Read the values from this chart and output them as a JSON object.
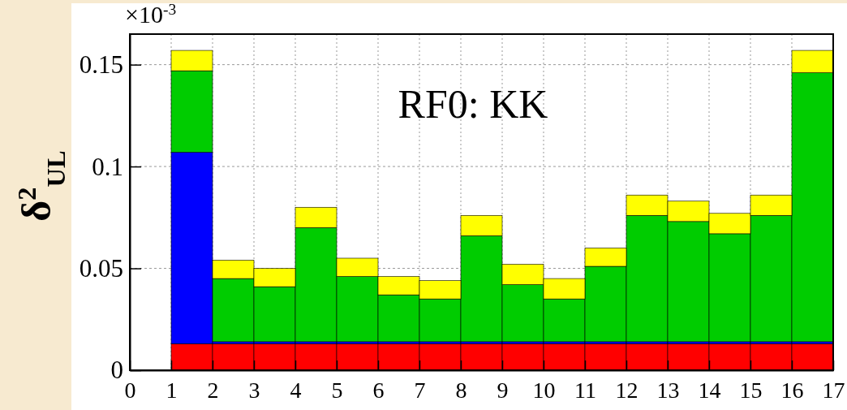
{
  "chart_data": {
    "type": "bar",
    "ylabel": "δ$^{2}$$_{UL}$",
    "annotations": [
      "×10$^{-3}$",
      "RF0: KK"
    ],
    "x": [
      1.5,
      2.5,
      3.5,
      4.5,
      5.5,
      6.5,
      7.5,
      8.5,
      9.5,
      10.5,
      11.5,
      12.5,
      13.5,
      14.5,
      15.5,
      16.5
    ],
    "stacked": true,
    "series": [
      {
        "color": "#ff0000",
        "values": [
          0.013,
          0.013,
          0.013,
          0.013,
          0.013,
          0.013,
          0.013,
          0.013,
          0.013,
          0.013,
          0.013,
          0.013,
          0.013,
          0.013,
          0.013,
          0.013
        ]
      },
      {
        "color": "#0000ff",
        "values": [
          0.094,
          0.001,
          0.001,
          0.001,
          0.001,
          0.001,
          0.001,
          0.001,
          0.001,
          0.001,
          0.001,
          0.001,
          0.001,
          0.001,
          0.001,
          0.001
        ]
      },
      {
        "color": "#00cc00",
        "values": [
          0.04,
          0.031,
          0.027,
          0.056,
          0.032,
          0.023,
          0.021,
          0.052,
          0.028,
          0.021,
          0.037,
          0.062,
          0.059,
          0.053,
          0.062,
          0.132
        ]
      },
      {
        "color": "#ffff00",
        "values": [
          0.01,
          0.009,
          0.009,
          0.01,
          0.009,
          0.009,
          0.009,
          0.01,
          0.01,
          0.01,
          0.009,
          0.01,
          0.01,
          0.01,
          0.01,
          0.011
        ]
      }
    ],
    "xlim": [
      0,
      17
    ],
    "xticks": [
      0,
      1,
      2,
      3,
      4,
      5,
      6,
      7,
      8,
      9,
      10,
      11,
      12,
      13,
      14,
      15,
      16,
      17
    ],
    "ylim": [
      0,
      0.165
    ],
    "yticks": [
      0,
      0.05,
      0.1,
      0.15
    ],
    "grid": true
  }
}
